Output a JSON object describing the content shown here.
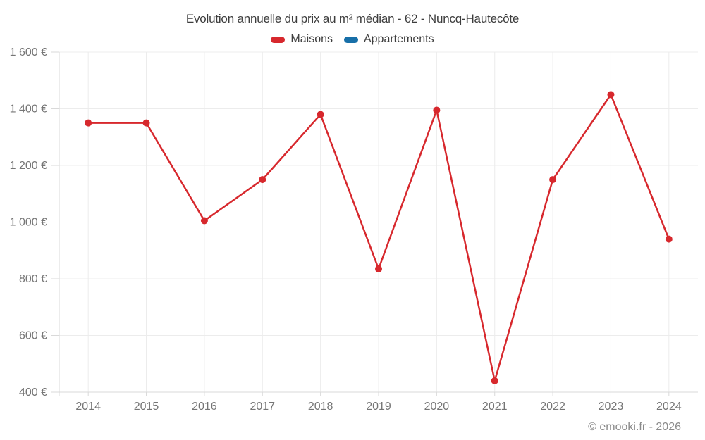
{
  "header": {
    "title": "Evolution annuelle du prix au m² médian - 62 - Nuncq-Hautecôte"
  },
  "legend": {
    "items": [
      {
        "label": "Maisons",
        "color": "#d7282d"
      },
      {
        "label": "Appartements",
        "color": "#176fa8"
      }
    ]
  },
  "footer": {
    "credit": "© emooki.fr - 2026"
  },
  "style": {
    "grid_color": "#ececec",
    "axis_color": "#d9d9d9",
    "tick_label_color": "#757575",
    "title_color": "#3d3d3d"
  },
  "chart_data": {
    "type": "line",
    "title": "Evolution annuelle du prix au m² médian - 62 - Nuncq-Hautecôte",
    "xlabel": "",
    "ylabel": "",
    "x": [
      "2014",
      "2015",
      "2016",
      "2017",
      "2018",
      "2019",
      "2020",
      "2021",
      "2022",
      "2023",
      "2024"
    ],
    "series": [
      {
        "name": "Maisons",
        "color": "#d7282d",
        "values": [
          1350,
          1350,
          1005,
          1150,
          1380,
          835,
          1395,
          440,
          1150,
          1450,
          940
        ]
      },
      {
        "name": "Appartements",
        "color": "#176fa8",
        "values": []
      }
    ],
    "ylim": [
      400,
      1600
    ],
    "yticks": [
      {
        "value": 1600,
        "label": "1 600 €"
      },
      {
        "value": 1400,
        "label": "1 400 €"
      },
      {
        "value": 1200,
        "label": "1 200 €"
      },
      {
        "value": 1000,
        "label": "1 000 €"
      },
      {
        "value": 800,
        "label": "800 €"
      },
      {
        "value": 600,
        "label": "600 €"
      },
      {
        "value": 400,
        "label": "400 €"
      }
    ],
    "grid": true,
    "legend_position": "top",
    "unit": "€"
  }
}
